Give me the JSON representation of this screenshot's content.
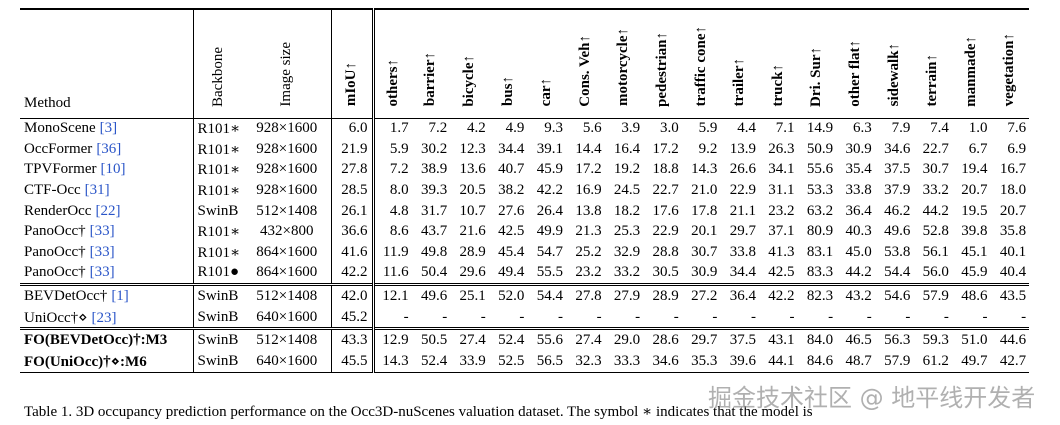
{
  "table": {
    "headers": [
      "Method",
      "Backbone",
      "Image size",
      "mIoU↑",
      "others↑",
      "barrier↑",
      "bicycle↑",
      "bus↑",
      "car↑",
      "Cons. Veh↑",
      "motorcycle↑",
      "pedestrian↑",
      "traffic cone↑",
      "trailer↑",
      "truck↑",
      "Dri. Sur↑",
      "other flat↑",
      "sidewalk↑",
      "terrain↑",
      "manmade↑",
      "vegetation↑"
    ],
    "groups": [
      {
        "rows": [
          {
            "method": "MonoScene",
            "ref": "[3]",
            "cells": [
              "R101∗",
              "928×1600",
              "6.0",
              "1.7",
              "7.2",
              "4.2",
              "4.9",
              "9.3",
              "5.6",
              "3.9",
              "3.0",
              "5.9",
              "4.4",
              "7.1",
              "14.9",
              "6.3",
              "7.9",
              "7.4",
              "1.0",
              "7.6"
            ]
          },
          {
            "method": "OccFormer",
            "ref": "[36]",
            "cells": [
              "R101∗",
              "928×1600",
              "21.9",
              "5.9",
              "30.2",
              "12.3",
              "34.4",
              "39.1",
              "14.4",
              "16.4",
              "17.2",
              "9.2",
              "13.9",
              "26.3",
              "50.9",
              "30.9",
              "34.6",
              "22.7",
              "6.7",
              "6.9"
            ]
          },
          {
            "method": "TPVFormer",
            "ref": "[10]",
            "cells": [
              "R101∗",
              "928×1600",
              "27.8",
              "7.2",
              "38.9",
              "13.6",
              "40.7",
              "45.9",
              "17.2",
              "19.2",
              "18.8",
              "14.3",
              "26.6",
              "34.1",
              "55.6",
              "35.4",
              "37.5",
              "30.7",
              "19.4",
              "16.7"
            ]
          },
          {
            "method": "CTF-Occ",
            "ref": "[31]",
            "cells": [
              "R101∗",
              "928×1600",
              "28.5",
              "8.0",
              "39.3",
              "20.5",
              "38.2",
              "42.2",
              "16.9",
              "24.5",
              "22.7",
              "21.0",
              "22.9",
              "31.1",
              "53.3",
              "33.8",
              "37.9",
              "33.2",
              "20.7",
              "18.0"
            ]
          },
          {
            "method": "RenderOcc",
            "ref": "[22]",
            "cells": [
              "SwinB",
              "512×1408",
              "26.1",
              "4.8",
              "31.7",
              "10.7",
              "27.6",
              "26.4",
              "13.8",
              "18.2",
              "17.6",
              "17.8",
              "21.1",
              "23.2",
              "63.2",
              "36.4",
              "46.2",
              "44.2",
              "19.5",
              "20.7"
            ]
          },
          {
            "method": "PanoOcc†",
            "ref": "[33]",
            "cells": [
              "R101∗",
              "432×800",
              "36.6",
              "8.6",
              "43.7",
              "21.6",
              "42.5",
              "49.9",
              "21.3",
              "25.3",
              "22.9",
              "20.1",
              "29.7",
              "37.1",
              "80.9",
              "40.3",
              "49.6",
              "52.8",
              "39.8",
              "35.8"
            ]
          },
          {
            "method": "PanoOcc†",
            "ref": "[33]",
            "cells": [
              "R101∗",
              "864×1600",
              "41.6",
              "11.9",
              "49.8",
              "28.9",
              "45.4",
              "54.7",
              "25.2",
              "32.9",
              "28.8",
              "30.7",
              "33.8",
              "41.3",
              "83.1",
              "45.0",
              "53.8",
              "56.1",
              "45.1",
              "40.1"
            ]
          },
          {
            "method": "PanoOcc†",
            "ref": "[33]",
            "cells": [
              "R101●",
              "864×1600",
              "42.2",
              "11.6",
              "50.4",
              "29.6",
              "49.4",
              "55.5",
              "23.2",
              "33.2",
              "30.5",
              "30.9",
              "34.4",
              "42.5",
              "83.3",
              "44.2",
              "54.4",
              "56.0",
              "45.9",
              "40.4"
            ]
          }
        ]
      },
      {
        "rows": [
          {
            "method": "BEVDetOcc†",
            "ref": "[1]",
            "cells": [
              "SwinB",
              "512×1408",
              "42.0",
              "12.1",
              "49.6",
              "25.1",
              "52.0",
              "54.4",
              "27.8",
              "27.9",
              "28.9",
              "27.2",
              "36.4",
              "42.2",
              "82.3",
              "43.2",
              "54.6",
              "57.9",
              "48.6",
              "43.5"
            ]
          },
          {
            "method": "UniOcc†⋄",
            "ref": "[23]",
            "cells": [
              "SwinB",
              "640×1600",
              "45.2",
              "-",
              "-",
              "-",
              "-",
              "-",
              "-",
              "-",
              "-",
              "-",
              "-",
              "-",
              "-",
              "-",
              "-",
              "-",
              "-",
              "-"
            ]
          }
        ]
      },
      {
        "rows": [
          {
            "method": "FO(BEVDetOcc)†:M3",
            "cells": [
              "SwinB",
              "512×1408",
              "43.3",
              "12.9",
              "50.5",
              "27.4",
              "52.4",
              "55.6",
              "27.4",
              "29.0",
              "28.6",
              "29.7",
              "37.5",
              "43.1",
              "84.0",
              "46.5",
              "56.3",
              "59.3",
              "51.0",
              "44.6"
            ]
          },
          {
            "method": "FO(UniOcc)†⋄:M6",
            "cells": [
              "SwinB",
              "640×1600",
              "45.5",
              "14.3",
              "52.4",
              "33.9",
              "52.5",
              "56.5",
              "32.3",
              "33.3",
              "34.6",
              "35.3",
              "39.6",
              "44.1",
              "84.6",
              "48.7",
              "57.9",
              "61.2",
              "49.7",
              "42.7"
            ]
          }
        ]
      }
    ]
  },
  "caption": "Table 1. 3D occupancy prediction performance on the Occ3D-nuScenes valuation dataset. The symbol ∗ indicates that the model is",
  "watermark": "掘金技术社区 @ 地平线开发者"
}
